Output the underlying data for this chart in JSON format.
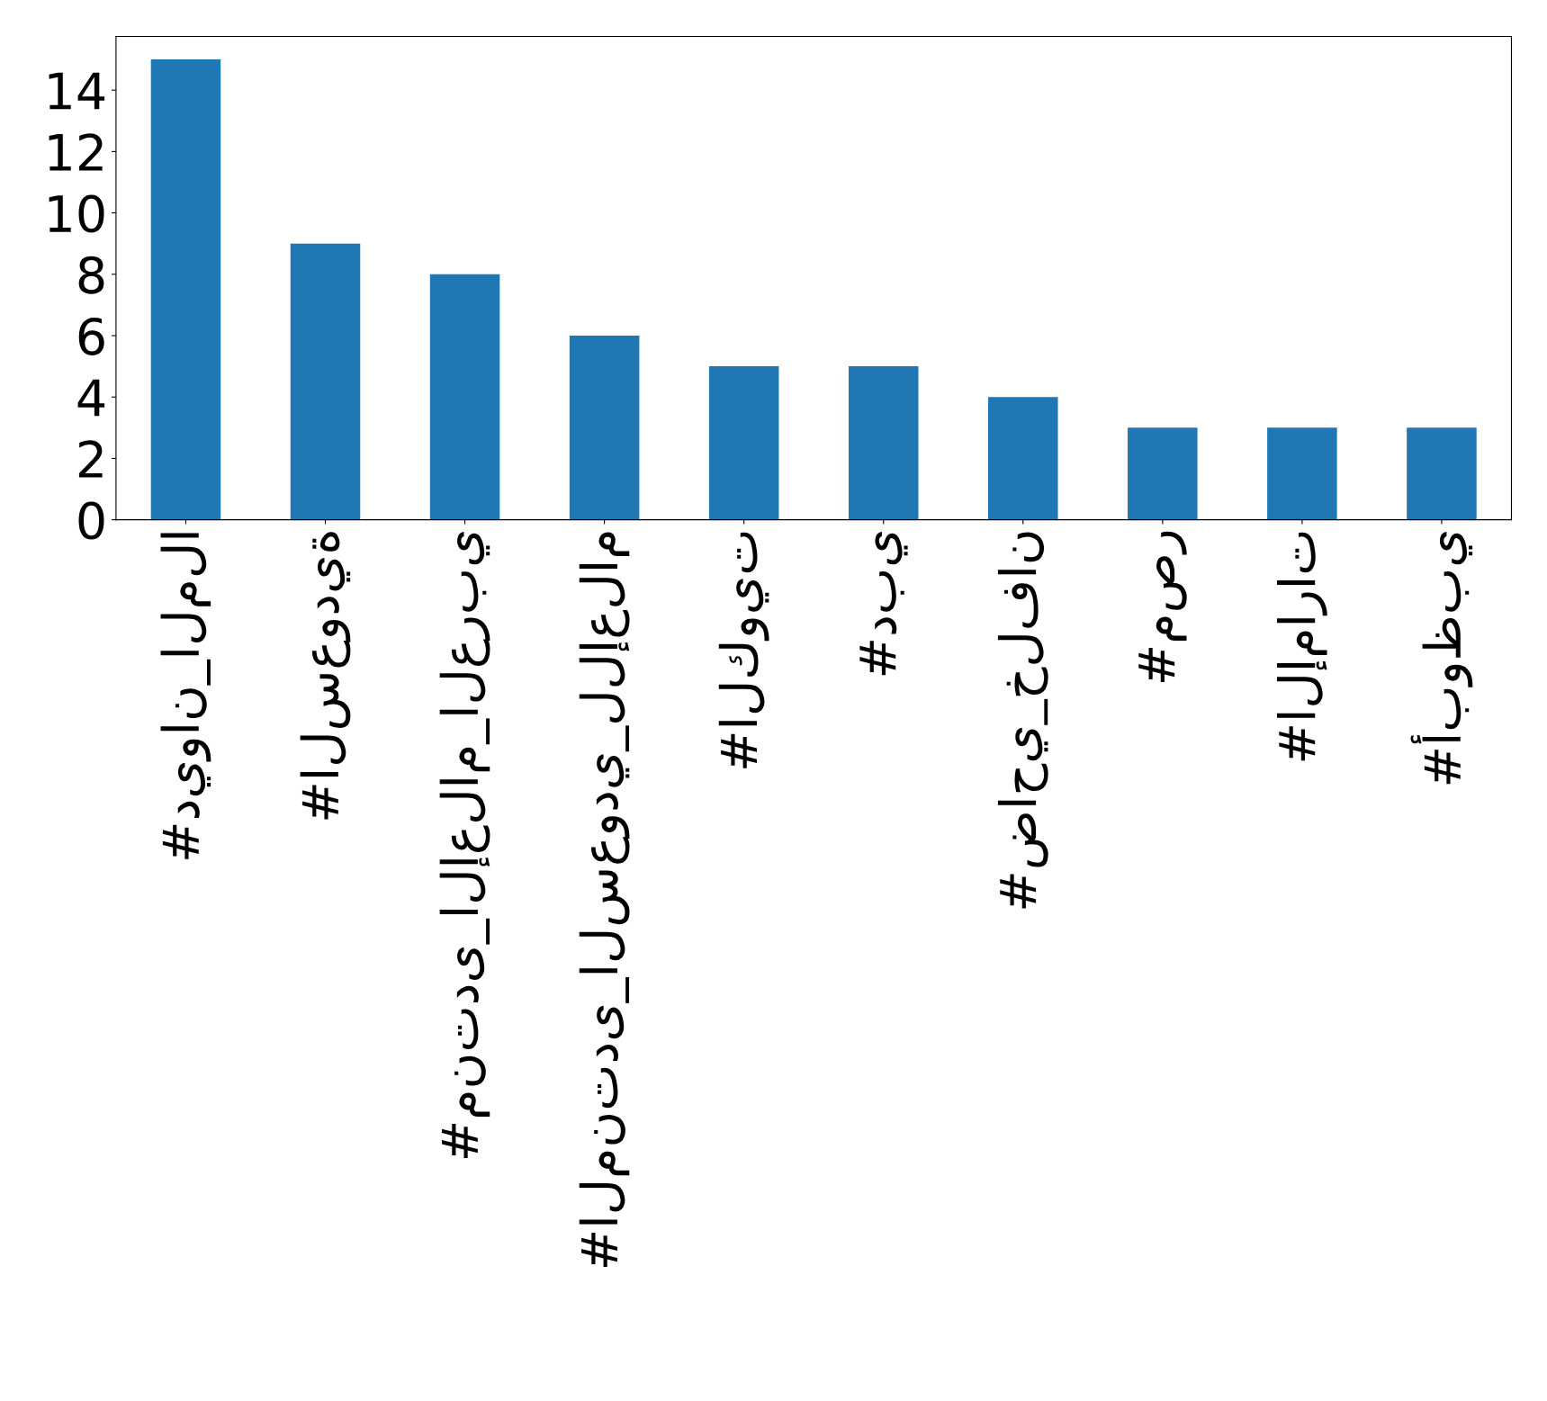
{
  "chart_data": {
    "type": "bar",
    "categories": [
      "#ديوان_الملا",
      "#السعودية",
      "#منتدى_الإعلام_العربي",
      "#المنتدى_السعودي_للإعلام",
      "#الكويت",
      "#دبي",
      "#ضاحي_خلفان",
      "#مصر",
      "#الإمارات",
      "#أبوظبي"
    ],
    "values": [
      15,
      9,
      8,
      6,
      5,
      5,
      4,
      3,
      3,
      3
    ],
    "color": "#1f77b4",
    "ylim": [
      0,
      15.75
    ],
    "yticks": [
      0,
      2,
      4,
      6,
      8,
      10,
      12,
      14
    ],
    "grid": false,
    "legend": false
  }
}
